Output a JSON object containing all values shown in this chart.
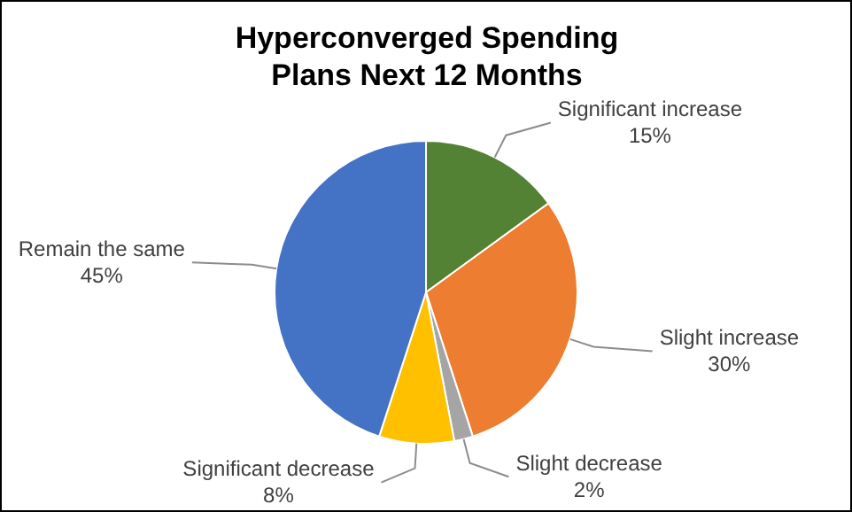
{
  "chart_data": {
    "type": "pie",
    "title": "Hyperconverged Spending Plans Next 12 Months",
    "categories": [
      "Significant increase",
      "Slight increase",
      "Slight decrease",
      "Significant decrease",
      "Remain the same"
    ],
    "values": [
      15,
      30,
      2,
      8,
      45
    ],
    "value_labels": [
      "15%",
      "30%",
      "2%",
      "8%",
      "45%"
    ],
    "colors": [
      "#548235",
      "#ed7d31",
      "#a5a5a5",
      "#ffc000",
      "#4472c4"
    ],
    "legend": false
  }
}
